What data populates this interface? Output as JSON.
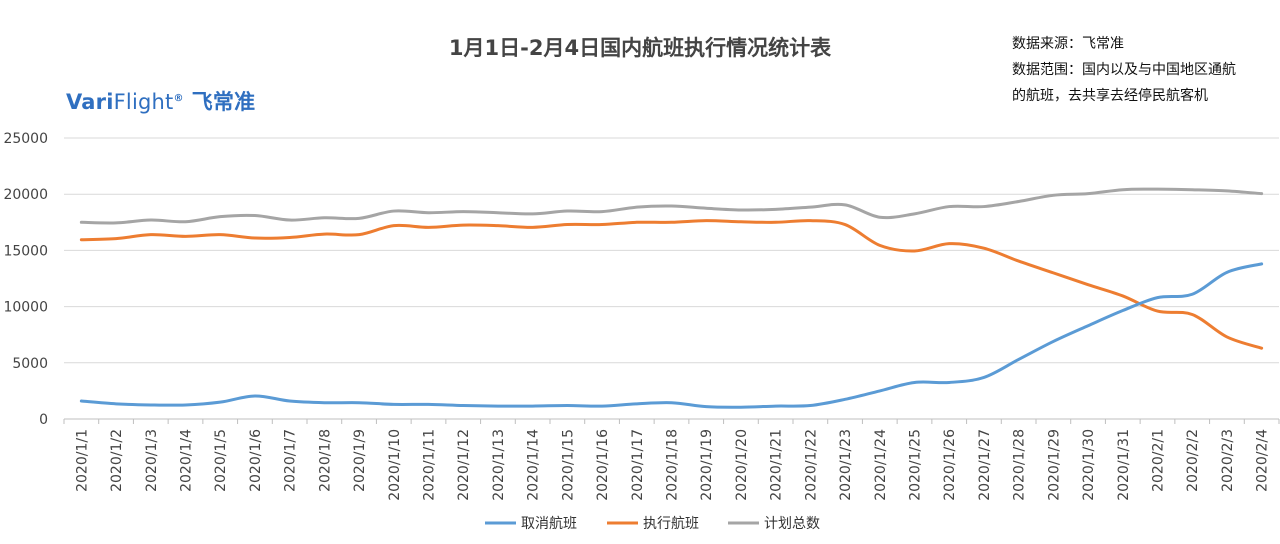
{
  "chart_data": {
    "type": "line",
    "title": "1月1日-2月4日国内航班执行情况统计表",
    "brand": {
      "latin_bold": "Vari",
      "latin_regular": "Flight",
      "registered": "®",
      "chinese": "飞常准"
    },
    "source_lines": [
      "数据来源：飞常准",
      "数据范围：国内以及与中国地区通航",
      "的航班，去共享去经停民航客机"
    ],
    "xlabel": "",
    "ylabel": "",
    "ylim": [
      0,
      25000
    ],
    "yticks": [
      0,
      5000,
      10000,
      15000,
      20000,
      25000
    ],
    "grid": true,
    "legend_position": "bottom",
    "x": [
      "2020/1/1",
      "2020/1/2",
      "2020/1/3",
      "2020/1/4",
      "2020/1/5",
      "2020/1/6",
      "2020/1/7",
      "2020/1/8",
      "2020/1/9",
      "2020/1/10",
      "2020/1/11",
      "2020/1/12",
      "2020/1/13",
      "2020/1/14",
      "2020/1/15",
      "2020/1/16",
      "2020/1/17",
      "2020/1/18",
      "2020/1/19",
      "2020/1/20",
      "2020/1/21",
      "2020/1/22",
      "2020/1/23",
      "2020/1/24",
      "2020/1/25",
      "2020/1/26",
      "2020/1/27",
      "2020/1/28",
      "2020/1/29",
      "2020/1/30",
      "2020/1/31",
      "2020/2/1",
      "2020/2/2",
      "2020/2/3",
      "2020/2/4"
    ],
    "series": [
      {
        "name": "取消航班",
        "color": "#5b9bd5",
        "values": [
          1600,
          1350,
          1250,
          1250,
          1500,
          2050,
          1600,
          1450,
          1450,
          1300,
          1300,
          1200,
          1150,
          1150,
          1200,
          1150,
          1350,
          1450,
          1100,
          1050,
          1150,
          1200,
          1750,
          2500,
          3250,
          3250,
          3700,
          5300,
          6900,
          8300,
          9650,
          10800,
          11100,
          13050,
          13800
        ]
      },
      {
        "name": "执行航班",
        "color": "#ed7d31",
        "values": [
          15950,
          16050,
          16400,
          16250,
          16400,
          16100,
          16150,
          16450,
          16400,
          17200,
          17050,
          17250,
          17200,
          17050,
          17300,
          17300,
          17500,
          17500,
          17650,
          17550,
          17500,
          17650,
          17300,
          15450,
          14950,
          15600,
          15200,
          14050,
          13000,
          11950,
          10950,
          9600,
          9300,
          7300,
          6300
        ]
      },
      {
        "name": "计划总数",
        "color": "#a5a5a5",
        "values": [
          17500,
          17450,
          17700,
          17550,
          18000,
          18100,
          17700,
          17900,
          17850,
          18500,
          18350,
          18450,
          18350,
          18250,
          18500,
          18450,
          18850,
          18950,
          18750,
          18600,
          18650,
          18850,
          19050,
          17950,
          18250,
          18900,
          18900,
          19350,
          19900,
          20050,
          20400,
          20450,
          20400,
          20300,
          20050
        ]
      }
    ]
  }
}
